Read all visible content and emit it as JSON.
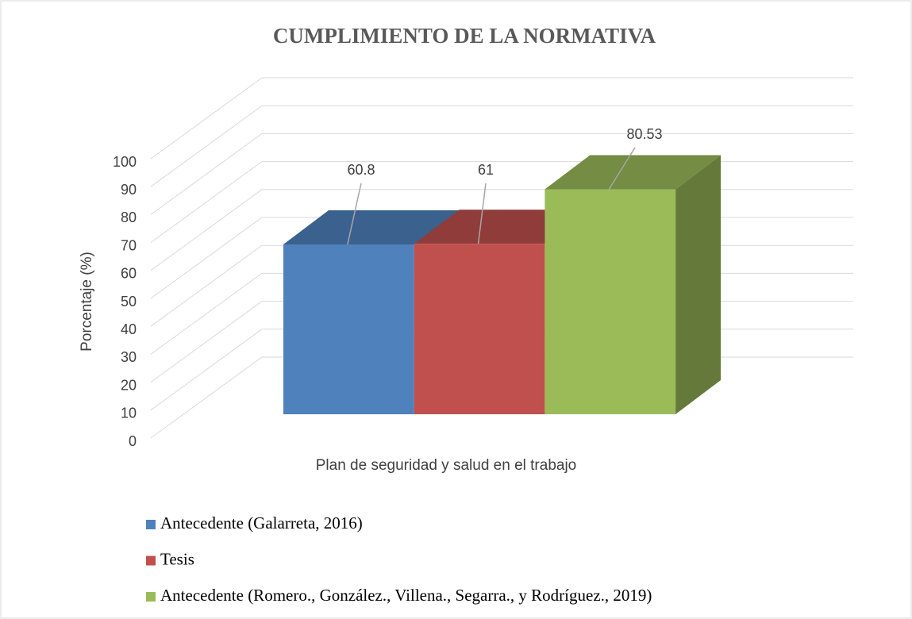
{
  "chart_data": {
    "type": "bar3d",
    "title": "CUMPLIMIENTO DE LA NORMATIVA",
    "ylabel": "Porcentaje (%)",
    "categories": [
      "Plan de seguridad y salud en el trabajo"
    ],
    "series": [
      {
        "name": "Antecedente (Galarreta, 2016)",
        "color": "#4f81bd",
        "values": [
          60.8
        ]
      },
      {
        "name": "Tesis",
        "color": "#c0504d",
        "values": [
          61
        ]
      },
      {
        "name": "Antecedente (Romero., González., Villena., Segarra., y Rodríguez., 2019)",
        "color": "#9bbb59",
        "values": [
          80.53
        ]
      }
    ],
    "ylim": [
      0,
      100
    ],
    "yticks": [
      0,
      10,
      20,
      30,
      40,
      50,
      60,
      70,
      80,
      90,
      100
    ],
    "grid": true,
    "legend": "bottom"
  }
}
